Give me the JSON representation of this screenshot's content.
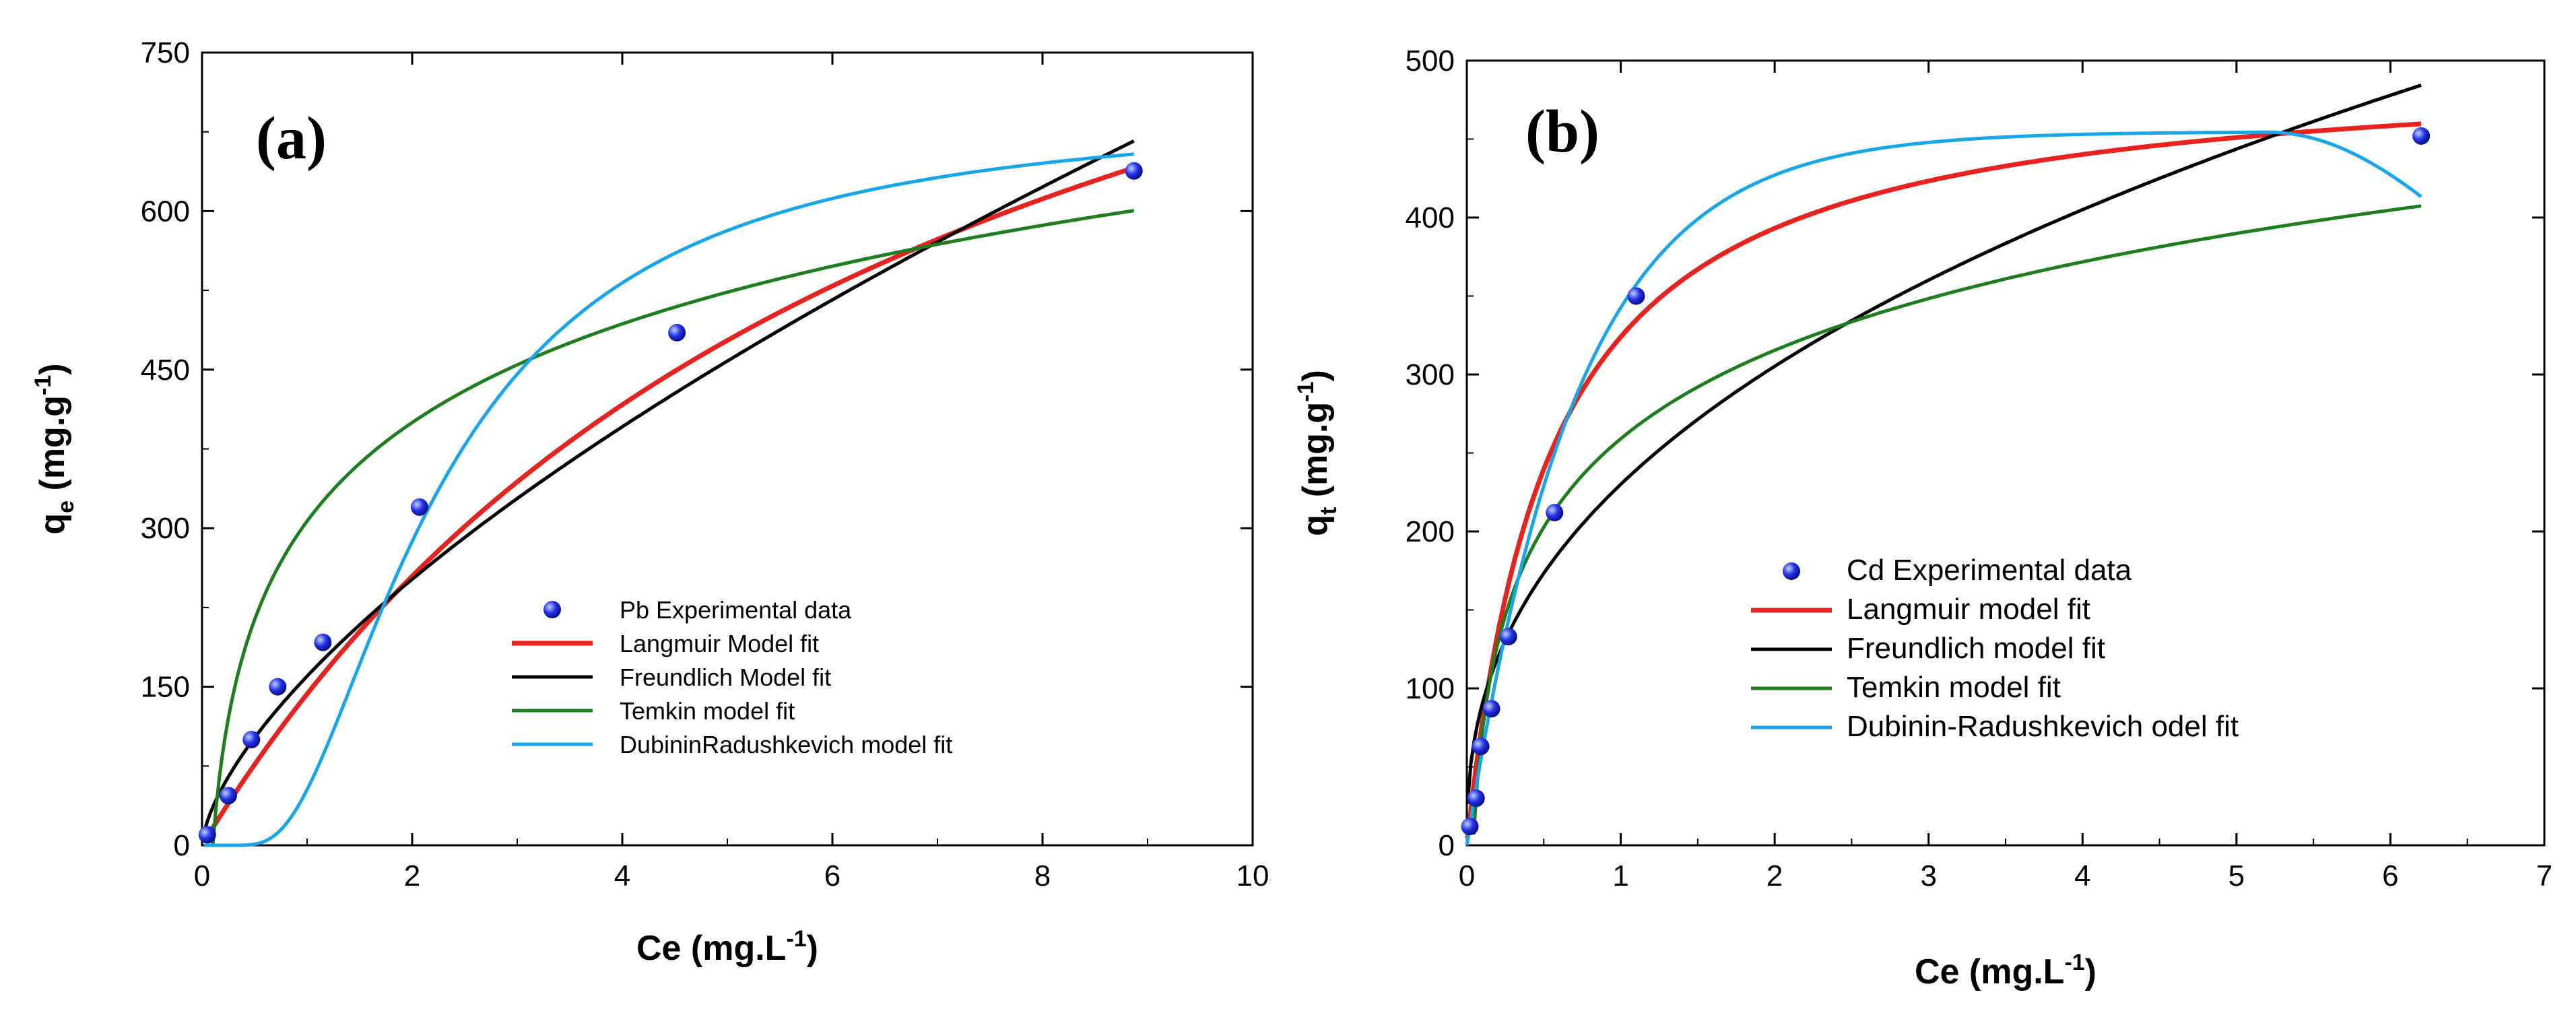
{
  "chart_data": [
    {
      "type": "scatter",
      "panel_label": "(a)",
      "xlabel": "Ce (mg.L",
      "xlabel_sup": "-1",
      "xlabel_end": ")",
      "ylabel_main": "q",
      "ylabel_sub": "e",
      "ylabel_rest": " (mg.g",
      "ylabel_sup": "-1",
      "ylabel_end": ")",
      "xlim": [
        0,
        10
      ],
      "ylim": [
        0,
        750
      ],
      "xticks": [
        0,
        2,
        4,
        6,
        8,
        10
      ],
      "yticks": [
        0,
        150,
        300,
        450,
        600,
        750
      ],
      "legend_position": "center-right",
      "experimental": {
        "name": "Pb Experimental data",
        "x": [
          0.05,
          0.25,
          0.47,
          0.72,
          1.15,
          2.07,
          4.52,
          8.87
        ],
        "y": [
          10,
          47,
          100,
          150,
          192,
          320,
          485,
          638
        ]
      },
      "series": [
        {
          "name": "Langmuir Model fit",
          "color": "#e8231f",
          "model": "langmuir",
          "params": {
            "qm": 1148,
            "k": 0.1425
          },
          "x_range": [
            0.02,
            8.87
          ]
        },
        {
          "name": "Freundlich Model fit",
          "color": "#000000",
          "model": "freundlich",
          "params": {
            "kf": 160,
            "n": 1.53
          },
          "x_range": [
            0.02,
            8.87
          ]
        },
        {
          "name": "Temkin model fit",
          "color": "#1e7d1e",
          "model": "temkin",
          "params": {
            "B": 134.6,
            "A": 9.76
          },
          "x_range": [
            0.103,
            8.87
          ]
        },
        {
          "name": "DubininRadushkevich model fit",
          "color": "#18a6ea",
          "model": "dr",
          "params": {
            "qm": 695.2,
            "beta": 5.37,
            "e0": 1.0
          },
          "x_range": [
            0.02,
            8.87
          ]
        }
      ]
    },
    {
      "type": "scatter",
      "panel_label": "(b)",
      "xlabel": "Ce (mg.L",
      "xlabel_sup": "-1",
      "xlabel_end": ")",
      "ylabel_main": "q",
      "ylabel_sub": "t",
      "ylabel_rest": " (mg.g",
      "ylabel_sup": "-1",
      "ylabel_end": ")",
      "xlim": [
        0,
        7
      ],
      "ylim": [
        0,
        500
      ],
      "xticks": [
        0,
        1,
        2,
        3,
        4,
        5,
        6,
        7
      ],
      "yticks": [
        0,
        100,
        200,
        300,
        400,
        500
      ],
      "legend_position": "center-right",
      "experimental": {
        "name": "Cd Experimental data",
        "x": [
          0.02,
          0.06,
          0.09,
          0.16,
          0.27,
          0.57,
          1.1,
          6.2
        ],
        "y": [
          12,
          30,
          63,
          87,
          133,
          212,
          350,
          452
        ]
      },
      "series": [
        {
          "name": "Langmuir model fit",
          "color": "#e8231f",
          "model": "langmuir",
          "params": {
            "qm": 500,
            "k": 1.84
          },
          "x_range": [
            0.005,
            6.2
          ]
        },
        {
          "name": "Freundlich model fit",
          "color": "#000000",
          "model": "freundlich",
          "params": {
            "kf": 230,
            "n": 2.45
          },
          "x_range": [
            0.005,
            6.2
          ]
        },
        {
          "name": "Temkin model fit",
          "color": "#1e7d1e",
          "model": "temkin",
          "params": {
            "B": 81.3,
            "A": 24.2
          },
          "x_range": [
            0.045,
            6.2
          ]
        },
        {
          "name": "Dubinin-Radushkevich odel fit",
          "color": "#18a6ea",
          "model": "drpeak",
          "params": {
            "qm": 454.7,
            "k": 1.4,
            "alpha": 0.1,
            "xp": 5.2
          },
          "x_range": [
            0.0,
            6.2
          ]
        }
      ]
    }
  ]
}
